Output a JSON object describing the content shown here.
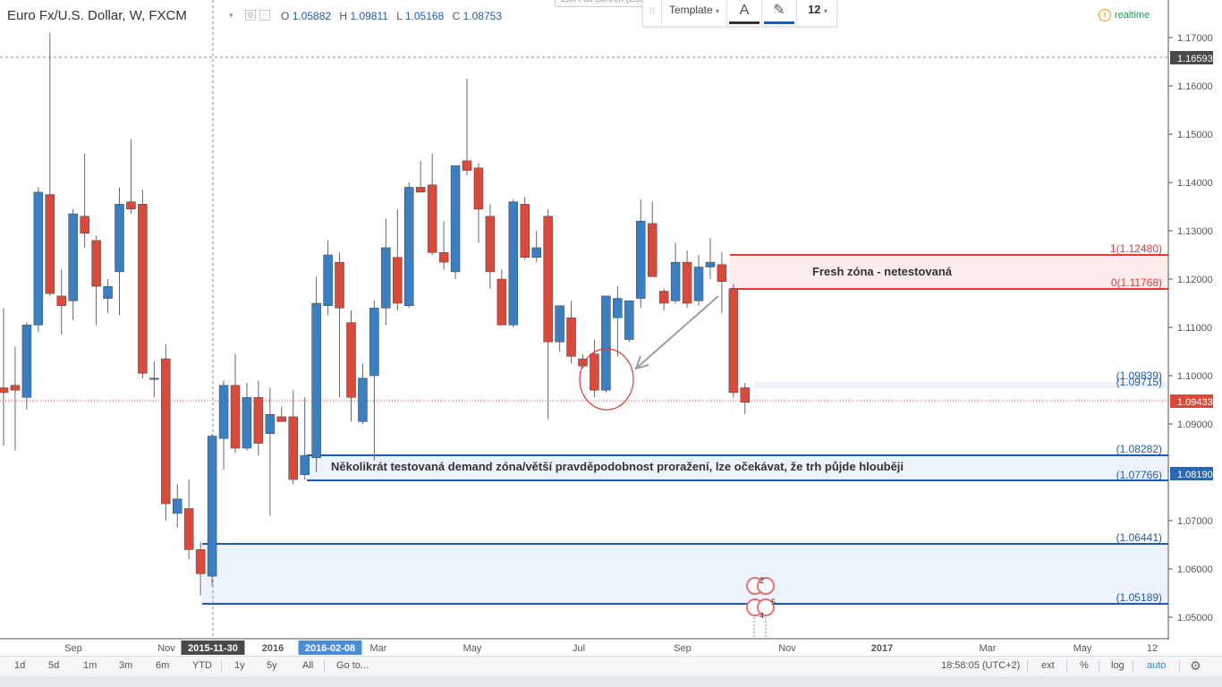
{
  "header": {
    "symbol": "Euro Fx/U.S. Dollar, W, FXCM",
    "ohlc": {
      "o_label": "O",
      "o": "1.05882",
      "h_label": "H",
      "h": "1.09811",
      "l_label": "L",
      "l": "1.05168",
      "c_label": "C",
      "c": "1.08753"
    },
    "exit_fullscreen": "Exit Full Screen (Esc)",
    "realtime": "realtime"
  },
  "drawing_toolbar": {
    "template": "Template",
    "text_icon": "A",
    "font_size": "12",
    "text_color": "#333333",
    "line_color": "#1e5bb0"
  },
  "price_axis": {
    "ticks": [
      "1.17000",
      "1.16000",
      "1.15000",
      "1.14000",
      "1.13000",
      "1.12000",
      "1.11000",
      "1.10000",
      "1.09000",
      "1.07000",
      "1.06000",
      "1.05000"
    ],
    "crosshair_price": "1.16593",
    "last_price": "1.09433",
    "crosshair_plus": "+",
    "demand_mark": "1.08190"
  },
  "time_axis": {
    "labels": [
      "Sep",
      "Nov",
      "2015-11-30",
      "2016",
      "2016-02-08",
      "Mar",
      "May",
      "Jul",
      "Sep",
      "Nov",
      "2017",
      "Mar",
      "May",
      "12"
    ]
  },
  "zones": {
    "fresh": {
      "label": "Fresh zóna - netestovaná",
      "top": "1(1.12480)",
      "bottom": "0(1.11768)",
      "color": "#e53935"
    },
    "blue_upper": {
      "top": "(1.09839)",
      "bottom": "(1.09715)"
    },
    "demand": {
      "label": "Několikrát testovaná demand zóna/větší pravděpodobnost proražení, lze očekávat, že trh půjde hlouběji",
      "top": "(1.08282)",
      "bottom": "(1.07766)",
      "color": "#1e5bb0"
    },
    "lower": {
      "top": "(1.06441)",
      "bottom": "(1.05189)"
    }
  },
  "events": {
    "top": "2",
    "bottom_left": "4",
    "bottom_right": "5"
  },
  "bottom_bar": {
    "ranges": [
      "1d",
      "5d",
      "1m",
      "3m",
      "6m",
      "YTD",
      "1y",
      "5y",
      "All"
    ],
    "goto": "Go to...",
    "clock": "18:58:05 (UTC+2)",
    "options": [
      "ext",
      "%",
      "log",
      "auto"
    ]
  },
  "chart_data": {
    "type": "candlestick",
    "timeframe": "W",
    "up_color": "#3a7fc1",
    "down_color": "#d84b3c",
    "ylim": [
      1.043,
      1.177
    ],
    "candles": [
      {
        "o": 1.0975,
        "h": 1.114,
        "l": 1.0855,
        "c": 1.0965
      },
      {
        "o": 1.098,
        "h": 1.106,
        "l": 1.0845,
        "c": 1.097
      },
      {
        "o": 1.0955,
        "h": 1.111,
        "l": 1.093,
        "c": 1.1105
      },
      {
        "o": 1.1105,
        "h": 1.139,
        "l": 1.109,
        "c": 1.138
      },
      {
        "o": 1.1375,
        "h": 1.171,
        "l": 1.1165,
        "c": 1.117
      },
      {
        "o": 1.1165,
        "h": 1.122,
        "l": 1.1085,
        "c": 1.1145
      },
      {
        "o": 1.1155,
        "h": 1.1345,
        "l": 1.1115,
        "c": 1.1335
      },
      {
        "o": 1.133,
        "h": 1.146,
        "l": 1.1265,
        "c": 1.1295
      },
      {
        "o": 1.128,
        "h": 1.129,
        "l": 1.1105,
        "c": 1.1185
      },
      {
        "o": 1.116,
        "h": 1.12,
        "l": 1.113,
        "c": 1.1185
      },
      {
        "o": 1.1215,
        "h": 1.139,
        "l": 1.1125,
        "c": 1.1355
      },
      {
        "o": 1.136,
        "h": 1.149,
        "l": 1.1335,
        "c": 1.1345
      },
      {
        "o": 1.1355,
        "h": 1.1385,
        "l": 1.0995,
        "c": 1.1005
      },
      {
        "o": 1.0995,
        "h": 1.103,
        "l": 1.0955,
        "c": 1.0995
      },
      {
        "o": 1.1035,
        "h": 1.1065,
        "l": 1.07,
        "c": 1.0735
      },
      {
        "o": 1.0715,
        "h": 1.0775,
        "l": 1.0685,
        "c": 1.0745
      },
      {
        "o": 1.0725,
        "h": 1.0785,
        "l": 1.062,
        "c": 1.064
      },
      {
        "o": 1.064,
        "h": 1.0655,
        "l": 1.0545,
        "c": 1.059
      },
      {
        "o": 1.0585,
        "h": 1.088,
        "l": 1.0565,
        "c": 1.0875
      },
      {
        "o": 1.087,
        "h": 1.099,
        "l": 1.0805,
        "c": 1.098
      },
      {
        "o": 1.098,
        "h": 1.1045,
        "l": 1.084,
        "c": 1.085
      },
      {
        "o": 1.085,
        "h": 1.0985,
        "l": 1.0845,
        "c": 1.0955
      },
      {
        "o": 1.0955,
        "h": 1.099,
        "l": 1.0835,
        "c": 1.086
      },
      {
        "o": 1.088,
        "h": 1.0975,
        "l": 1.071,
        "c": 1.092
      },
      {
        "o": 1.0915,
        "h": 1.0935,
        "l": 1.0905,
        "c": 1.0905
      },
      {
        "o": 1.0915,
        "h": 1.097,
        "l": 1.0775,
        "c": 1.0785
      },
      {
        "o": 1.0795,
        "h": 1.0955,
        "l": 1.0785,
        "c": 1.0835
      },
      {
        "o": 1.083,
        "h": 1.1205,
        "l": 1.08,
        "c": 1.115
      },
      {
        "o": 1.1145,
        "h": 1.128,
        "l": 1.1125,
        "c": 1.125
      },
      {
        "o": 1.1235,
        "h": 1.1255,
        "l": 1.0955,
        "c": 1.114
      },
      {
        "o": 1.111,
        "h": 1.1135,
        "l": 1.0905,
        "c": 1.0955
      },
      {
        "o": 1.0905,
        "h": 1.1025,
        "l": 1.09,
        "c": 1.0995
      },
      {
        "o": 1.1,
        "h": 1.1155,
        "l": 1.0825,
        "c": 1.114
      },
      {
        "o": 1.114,
        "h": 1.1325,
        "l": 1.1105,
        "c": 1.1265
      },
      {
        "o": 1.1245,
        "h": 1.1345,
        "l": 1.1135,
        "c": 1.115
      },
      {
        "o": 1.1145,
        "h": 1.14,
        "l": 1.114,
        "c": 1.139
      },
      {
        "o": 1.139,
        "h": 1.1445,
        "l": 1.138,
        "c": 1.138
      },
      {
        "o": 1.1395,
        "h": 1.146,
        "l": 1.125,
        "c": 1.1255
      },
      {
        "o": 1.1255,
        "h": 1.132,
        "l": 1.122,
        "c": 1.1235
      },
      {
        "o": 1.1215,
        "h": 1.143,
        "l": 1.12,
        "c": 1.1435
      },
      {
        "o": 1.1445,
        "h": 1.1615,
        "l": 1.1415,
        "c": 1.1425
      },
      {
        "o": 1.143,
        "h": 1.144,
        "l": 1.1275,
        "c": 1.1345
      },
      {
        "o": 1.133,
        "h": 1.1355,
        "l": 1.118,
        "c": 1.1215
      },
      {
        "o": 1.12,
        "h": 1.122,
        "l": 1.1105,
        "c": 1.1105
      },
      {
        "o": 1.1105,
        "h": 1.1365,
        "l": 1.11,
        "c": 1.136
      },
      {
        "o": 1.1355,
        "h": 1.137,
        "l": 1.124,
        "c": 1.1245
      },
      {
        "o": 1.1245,
        "h": 1.13,
        "l": 1.1235,
        "c": 1.1265
      },
      {
        "o": 1.133,
        "h": 1.1345,
        "l": 1.091,
        "c": 1.107
      },
      {
        "o": 1.107,
        "h": 1.1135,
        "l": 1.105,
        "c": 1.1145
      },
      {
        "o": 1.112,
        "h": 1.1155,
        "l": 1.1025,
        "c": 1.104
      },
      {
        "o": 1.1035,
        "h": 1.1045,
        "l": 1.1015,
        "c": 1.102
      },
      {
        "o": 1.1045,
        "h": 1.1075,
        "l": 1.0955,
        "c": 1.097
      },
      {
        "o": 1.097,
        "h": 1.1165,
        "l": 1.0965,
        "c": 1.1165
      },
      {
        "o": 1.112,
        "h": 1.1185,
        "l": 1.104,
        "c": 1.116
      },
      {
        "o": 1.1075,
        "h": 1.1155,
        "l": 1.107,
        "c": 1.1155
      },
      {
        "o": 1.116,
        "h": 1.1365,
        "l": 1.114,
        "c": 1.132
      },
      {
        "o": 1.1315,
        "h": 1.136,
        "l": 1.1205,
        "c": 1.1205
      },
      {
        "o": 1.1175,
        "h": 1.118,
        "l": 1.1135,
        "c": 1.115
      },
      {
        "o": 1.1155,
        "h": 1.1275,
        "l": 1.115,
        "c": 1.1235
      },
      {
        "o": 1.1235,
        "h": 1.126,
        "l": 1.114,
        "c": 1.115
      },
      {
        "o": 1.1155,
        "h": 1.125,
        "l": 1.1145,
        "c": 1.1225
      },
      {
        "o": 1.1225,
        "h": 1.1285,
        "l": 1.12,
        "c": 1.1235
      },
      {
        "o": 1.123,
        "h": 1.1255,
        "l": 1.113,
        "c": 1.1195
      },
      {
        "o": 1.118,
        "h": 1.119,
        "l": 1.0955,
        "c": 1.0965
      },
      {
        "o": 1.0975,
        "h": 1.0985,
        "l": 1.092,
        "c": 1.0945
      }
    ]
  }
}
